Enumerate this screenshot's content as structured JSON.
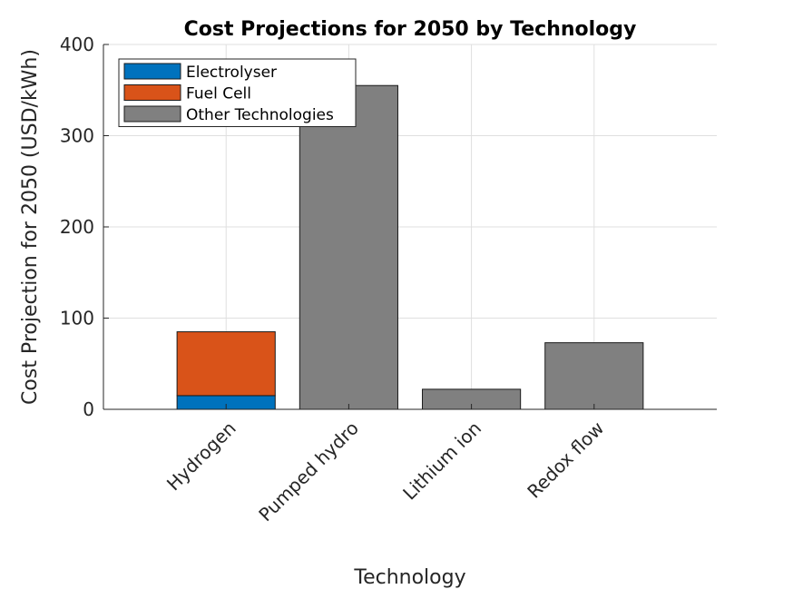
{
  "chart_data": {
    "type": "bar",
    "title": "Cost Projections for 2050 by Technology",
    "xlabel": "Technology",
    "ylabel": "Cost Projection for 2050 (USD/kWh)",
    "ylim": [
      0,
      400
    ],
    "yticks": [
      0,
      100,
      200,
      300,
      400
    ],
    "grid": true,
    "legend_position": "top-left",
    "categories": [
      "Hydrogen",
      "Pumped hydro",
      "Lithium ion",
      "Redox flow"
    ],
    "stacked": true,
    "series": [
      {
        "name": "Electrolyser",
        "color": "#0072BD",
        "values": [
          15,
          0,
          0,
          0
        ]
      },
      {
        "name": "Fuel Cell",
        "color": "#D95319",
        "values": [
          70,
          0,
          0,
          0
        ]
      },
      {
        "name": "Other Technologies",
        "color": "#808080",
        "values": [
          0,
          355,
          22,
          73
        ]
      }
    ]
  }
}
